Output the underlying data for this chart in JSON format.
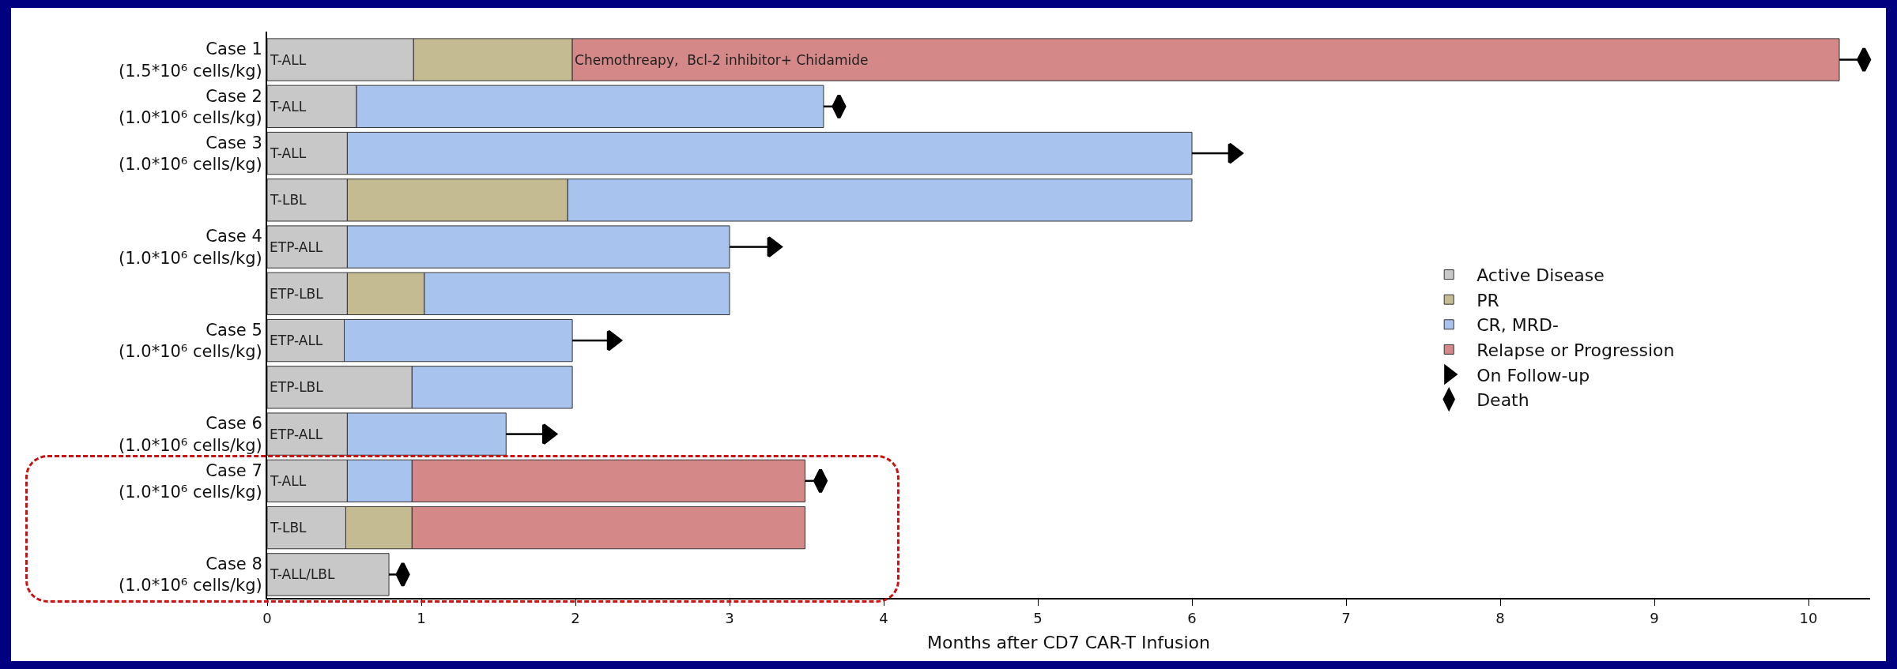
{
  "chart_data": {
    "type": "bar",
    "orientation": "horizontal",
    "stacked": true,
    "xlabel": "Months after CD7 CAR-T Infusion",
    "categories": [
      "Case 1\n(1.5*10⁶ cells/kg)",
      "Case 2\n(1.0*10⁶ cells/kg)",
      "Case 3\n(1.0*10⁶ cells/kg)",
      null,
      "Case 4\n(1.0*10⁶ cells/kg)",
      null,
      "Case 5\n(1.0*10⁶ cells/kg)",
      null,
      "Case 6\n(1.0*10⁶ cells/kg)",
      "Case 7\n(1.0*10⁶ cells/kg)",
      null,
      "Case 8\n(1.0*10⁶ cells/kg)"
    ],
    "series": [
      {
        "name": "Active Disease",
        "color": "#c8c8c8",
        "values": [
          0.95,
          0.58,
          0.52,
          0.52,
          0.52,
          0.52,
          0.5,
          0.94,
          0.52,
          0.52,
          0.51,
          0.79
        ],
        "value_labels": [
          "T-ALL",
          "T-ALL",
          "T-ALL",
          "T-LBL",
          "ETP-ALL",
          "ETP-LBL",
          "ETP-ALL",
          "ETP-LBL",
          "ETP-ALL",
          "T-ALL",
          "T-LBL",
          "T-ALL/LBL"
        ]
      },
      {
        "name": "PR",
        "color": "#c4bb92",
        "values": [
          1.03,
          null,
          null,
          1.43,
          null,
          0.5,
          null,
          null,
          null,
          null,
          0.43,
          null
        ]
      },
      {
        "name": "CR, MRD-",
        "color": "#a8c4ee",
        "values": [
          null,
          3.03,
          5.48,
          4.05,
          2.48,
          1.98,
          1.48,
          1.04,
          1.03,
          0.42,
          null,
          null
        ]
      },
      {
        "name": "Relapse or Progression",
        "color": "#d48888",
        "values": [
          8.22,
          null,
          null,
          null,
          null,
          null,
          null,
          null,
          null,
          2.55,
          2.55,
          null
        ],
        "value_labels": [
          "Chemothreapy,  Bcl-2 inhibitor+ Chidamide",
          null,
          null,
          null,
          null,
          null,
          null,
          null,
          null,
          null,
          null,
          null
        ]
      },
      {
        "name": "On Follow-up",
        "type": "scatter",
        "marker": "triangle",
        "color": "#000000",
        "values": [
          null,
          null,
          6.27,
          null,
          3.28,
          null,
          2.24,
          null,
          1.82,
          null,
          null,
          null
        ]
      },
      {
        "name": "Death",
        "type": "scatter",
        "marker": "diamond",
        "color": "#000000",
        "values": [
          10.36,
          3.71,
          null,
          null,
          null,
          null,
          null,
          null,
          null,
          3.59,
          null,
          0.88
        ]
      }
    ],
    "xlim": [
      0,
      10.4
    ],
    "xticks": [
      0,
      1,
      2,
      3,
      4,
      5,
      6,
      7,
      8,
      9,
      10
    ],
    "grid": false,
    "legend": "right"
  }
}
